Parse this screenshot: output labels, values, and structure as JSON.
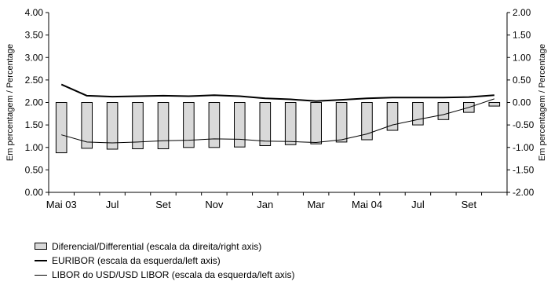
{
  "chart_data": {
    "type": "bar+line",
    "x": [
      "Mai 03",
      "",
      "Jul",
      "",
      "Set",
      "",
      "Nov",
      "",
      "Jan",
      "",
      "Mar",
      "",
      "Mai 04",
      "",
      "Jul",
      "",
      "Set",
      ""
    ],
    "x_tick_labels": [
      "Mai 03",
      "Jul",
      "Set",
      "Nov",
      "Jan",
      "Mar",
      "Mai 04",
      "Jul",
      "Set"
    ],
    "left_axis": {
      "label": "Em percentagem / Percentage",
      "range": [
        0,
        4
      ],
      "ticks": [
        "0.00",
        "0.50",
        "1.00",
        "1.50",
        "2.00",
        "2.50",
        "3.00",
        "3.50",
        "4.00"
      ]
    },
    "right_axis": {
      "label": "Em percentagem / Percentage",
      "range": [
        -2,
        2
      ],
      "ticks": [
        "-2.00",
        "-1.50",
        "-1.00",
        "-0.50",
        "0.00",
        "0.50",
        "1.00",
        "1.50",
        "2.00"
      ]
    },
    "series": [
      {
        "name": "Diferencial/Differential (escala da direita/right axis)",
        "kind": "bar",
        "axis": "right",
        "color": "#d9d9d9",
        "values": [
          -1.12,
          -1.02,
          -1.04,
          -1.03,
          -1.03,
          -1.0,
          -1.0,
          -0.99,
          -0.96,
          -0.94,
          -0.92,
          -0.88,
          -0.83,
          -0.62,
          -0.5,
          -0.38,
          -0.22,
          -0.08
        ]
      },
      {
        "name": "EURIBOR (escala da esquerda/left axis)",
        "kind": "line",
        "axis": "left",
        "color": "#000000",
        "line_weight": "thick",
        "values": [
          2.4,
          2.15,
          2.13,
          2.14,
          2.15,
          2.14,
          2.16,
          2.14,
          2.09,
          2.07,
          2.03,
          2.06,
          2.09,
          2.11,
          2.11,
          2.11,
          2.12,
          2.16
        ]
      },
      {
        "name": "LIBOR do USD/USD LIBOR (escala da esquerda/left axis)",
        "kind": "line",
        "axis": "left",
        "color": "#000000",
        "line_weight": "thin",
        "values": [
          1.28,
          1.12,
          1.1,
          1.12,
          1.15,
          1.16,
          1.19,
          1.18,
          1.14,
          1.13,
          1.11,
          1.17,
          1.3,
          1.5,
          1.62,
          1.73,
          1.89,
          2.08
        ]
      }
    ],
    "grid": false,
    "legend_position": "bottom-left"
  }
}
